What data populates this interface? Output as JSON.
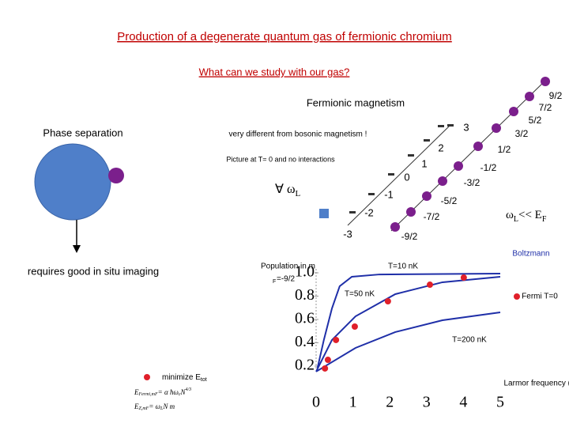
{
  "header": {
    "title": "Production of a degenerate quantum gas of fermionic chromium",
    "subtitle": "What can we study with our gas?"
  },
  "left": {
    "heading": "Phase separation",
    "note": "requires good in situ imaging",
    "minimize": "minimize E",
    "minimize_sub": "tot",
    "formula_1": "E",
    "formula_1_sub": "Fermi,mF",
    "formula_1_rest": "= α ħω",
    "formula_1_sub2": "c",
    "formula_1_tail": "N",
    "formula_1_exp": "4/3",
    "formula_2": "E",
    "formula_2_sub": "Z,mF",
    "formula_2_rest": "= ω",
    "formula_2_sub2": "L",
    "formula_2_tail": "N m"
  },
  "magnetism": {
    "heading": "Fermionic magnetism",
    "note": "very different from bosonic magnetism !",
    "picture": "Picture at  T= 0 and no interactions",
    "formula_left": "∀ ω",
    "formula_left_sub": "L",
    "formula_right": "ω",
    "formula_right_sub": "L",
    "formula_right_rest": "<< E",
    "formula_right_sub2": "F",
    "boson_states": [
      "-3",
      "-2",
      "-1",
      "0",
      "1",
      "2",
      "3"
    ],
    "fermion_states": [
      "-9/2",
      "-7/2",
      "-5/2",
      "-3/2",
      "-1/2",
      "1/2",
      "3/2",
      "5/2",
      "7/2",
      "9/2"
    ]
  },
  "plot": {
    "ylabel": "Population in m",
    "ylabel_sub": "F",
    "ylabel_tail": "=-9/2",
    "xlabel": "Larmor frequency (kHz)",
    "labels": [
      "Boltzmann",
      "T=10 nK",
      "T=50 nK",
      "Fermi T=0",
      "T=200 nK"
    ],
    "xlim": [
      0,
      5
    ],
    "ylim": [
      0.2,
      1
    ],
    "xticks": [
      0,
      1,
      2,
      3,
      4,
      5
    ],
    "yticks": [
      0.2,
      0.4,
      0.6,
      0.8,
      {
        "value": 1,
        "label": "1.0"
      }
    ],
    "curve_color": "#1f2fa8",
    "point_color": "#e0202a",
    "curves": [
      {
        "x": [
          0.04,
          0.21,
          0.43,
          0.64,
          0.97,
          1.72,
          5
        ],
        "y": [
          0.186,
          0.424,
          0.695,
          0.885,
          0.966,
          0.986,
          0.993
        ]
      },
      {
        "x": [
          0,
          0.43,
          1.07,
          2.15,
          3.43,
          5
        ],
        "y": [
          0.153,
          0.424,
          0.627,
          0.817,
          0.919,
          0.966
        ]
      },
      {
        "x": [
          0,
          1.07,
          2.15,
          3.43,
          5
        ],
        "y": [
          0.153,
          0.356,
          0.492,
          0.593,
          0.661
        ]
      }
    ],
    "points": {
      "x": [
        0.24,
        0.32,
        0.54,
        1.05,
        1.95,
        3.09,
        4.01
      ],
      "y": [
        0.18,
        0.254,
        0.424,
        0.539,
        0.756,
        0.898,
        0.959
      ]
    }
  }
}
